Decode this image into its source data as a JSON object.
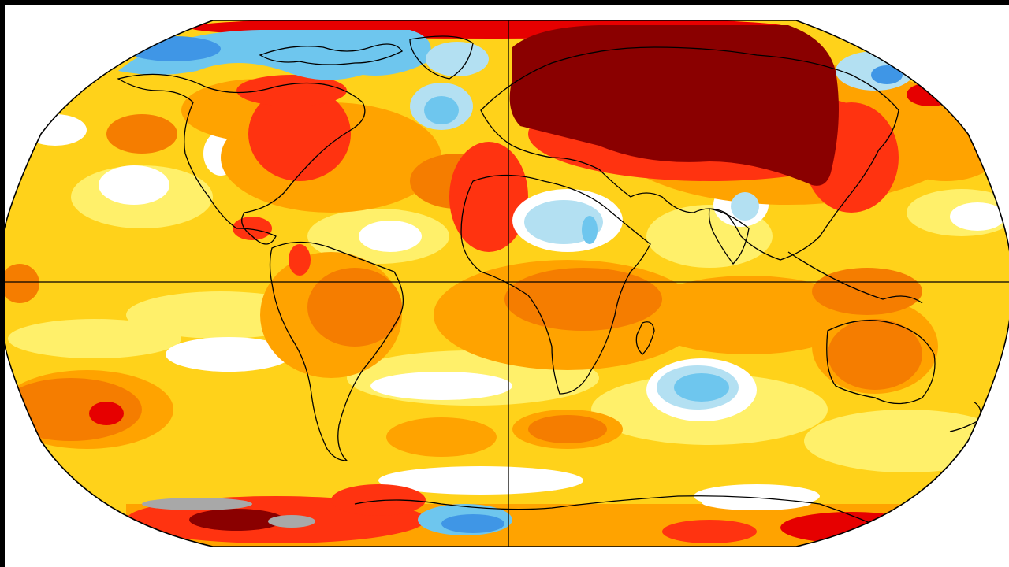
{
  "map": {
    "projection": "robinson",
    "graticule": [
      "equator",
      "prime-meridian"
    ],
    "colors": {
      "ocean_base": "#ffd21a",
      "neutral": "#ffffff",
      "cool_light": "#b3e0f2",
      "cool": "#6ec6ee",
      "cool_strong": "#3f96e6",
      "warm_light": "#fff06a",
      "warm": "#ffa300",
      "warm_orange": "#f57d00",
      "hot": "#ff3310",
      "very_hot": "#e60000",
      "extreme": "#8a0000",
      "no_data": "#a8a8a8",
      "outline": "#000000"
    },
    "regions": [
      {
        "name": "siberia-anomaly",
        "level": "extreme"
      },
      {
        "name": "europe-anomaly",
        "level": "very_hot"
      },
      {
        "name": "eastern-north-america-anomaly",
        "level": "very_hot"
      },
      {
        "name": "arctic-canada-anomaly",
        "level": "cool"
      },
      {
        "name": "greenland-sea-anomaly",
        "level": "cool_light"
      },
      {
        "name": "sahara-anomaly",
        "level": "cool_light"
      },
      {
        "name": "indian-ocean-anomaly",
        "level": "cool"
      },
      {
        "name": "antarctic-peninsula-anomaly",
        "level": "extreme"
      },
      {
        "name": "antarctic-weddell-anomaly",
        "level": "cool"
      },
      {
        "name": "south-pacific-anomaly",
        "level": "very_hot"
      }
    ]
  }
}
